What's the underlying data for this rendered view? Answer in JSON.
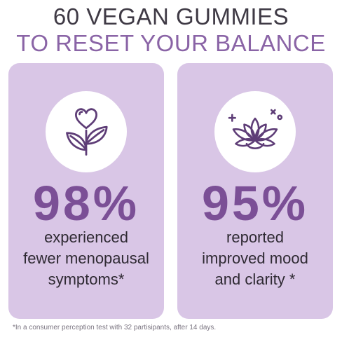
{
  "header": {
    "line1": "60 VEGAN GUMMIES",
    "line2": "TO RESET YOUR BALANCE"
  },
  "cards": [
    {
      "icon": "heart-leaves-icon",
      "stat": "98%",
      "lines": [
        "experienced",
        "fewer menopausal",
        "symptoms*"
      ]
    },
    {
      "icon": "lotus-icon",
      "stat": "95%",
      "lines": [
        "reported",
        "improved mood",
        "and clarity *"
      ]
    }
  ],
  "footnote": "*In a consumer perception test with 32 partisipants, after 14 days.",
  "colors": {
    "card_bg": "#d9c6e6",
    "accent_purple": "#7b4f96",
    "title_light": "#8a64a6"
  }
}
